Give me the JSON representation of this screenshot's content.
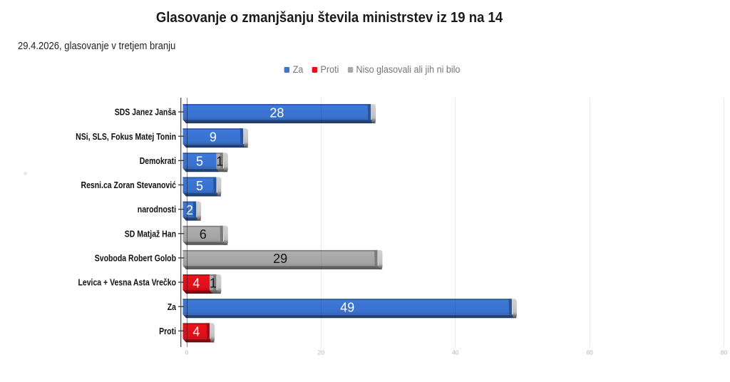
{
  "title": "Glasovanje o zmanjšanju števila ministrstev iz 19 na 14",
  "subtitle": "29.4.2026, glasovanje v tretjem branju",
  "background_color": "#ffffff",
  "chart_data": {
    "type": "bar",
    "orientation": "horizontal",
    "stacked": true,
    "title": "Glasovanje o zmanjšanju števila ministrstev iz 19 na 14",
    "subtitle": "29.4.2026, glasovanje v tretjem branju",
    "xlabel": "",
    "ylabel": "",
    "xlim": [
      0,
      80
    ],
    "x_ticks": [
      0,
      20,
      40,
      60,
      80
    ],
    "grid": true,
    "legend_position": "top-center",
    "bar_style": "3d-bevel",
    "series": [
      {
        "name": "Za",
        "color": "#3b75d4",
        "value_label_color": "#ffffff",
        "values": [
          28,
          9,
          5,
          5,
          2,
          0,
          0,
          0,
          49,
          0
        ]
      },
      {
        "name": "Proti",
        "color": "#e6101b",
        "value_label_color": "#ffffff",
        "values": [
          0,
          0,
          0,
          0,
          0,
          0,
          0,
          4,
          0,
          4
        ]
      },
      {
        "name": "Niso glasovali ali jih ni bilo",
        "color": "#a9a9a9",
        "value_label_color": "#141414",
        "values": [
          0,
          0,
          1,
          0,
          0,
          6,
          29,
          1,
          0,
          0
        ]
      }
    ],
    "categories": [
      "SDS Janez Janša",
      "NSi, SLS, Fokus Matej Tonin",
      "Demokrati",
      "Resni.ca Zoran Stevanović",
      "narodnosti",
      "SD Matjaž Han",
      "Svoboda Robert Golob",
      "Levica + Vesna Asta Vrečko",
      "Za",
      "Proti"
    ],
    "axis_colors": {
      "axis_line": "#4f4f4f",
      "zero_line_alpha_black": 0.44,
      "grid_line_alpha_black": 0.082,
      "tick_mark": "#3f3f3f",
      "tick_label": "#b5b5b5",
      "category_label": "#111111"
    }
  }
}
